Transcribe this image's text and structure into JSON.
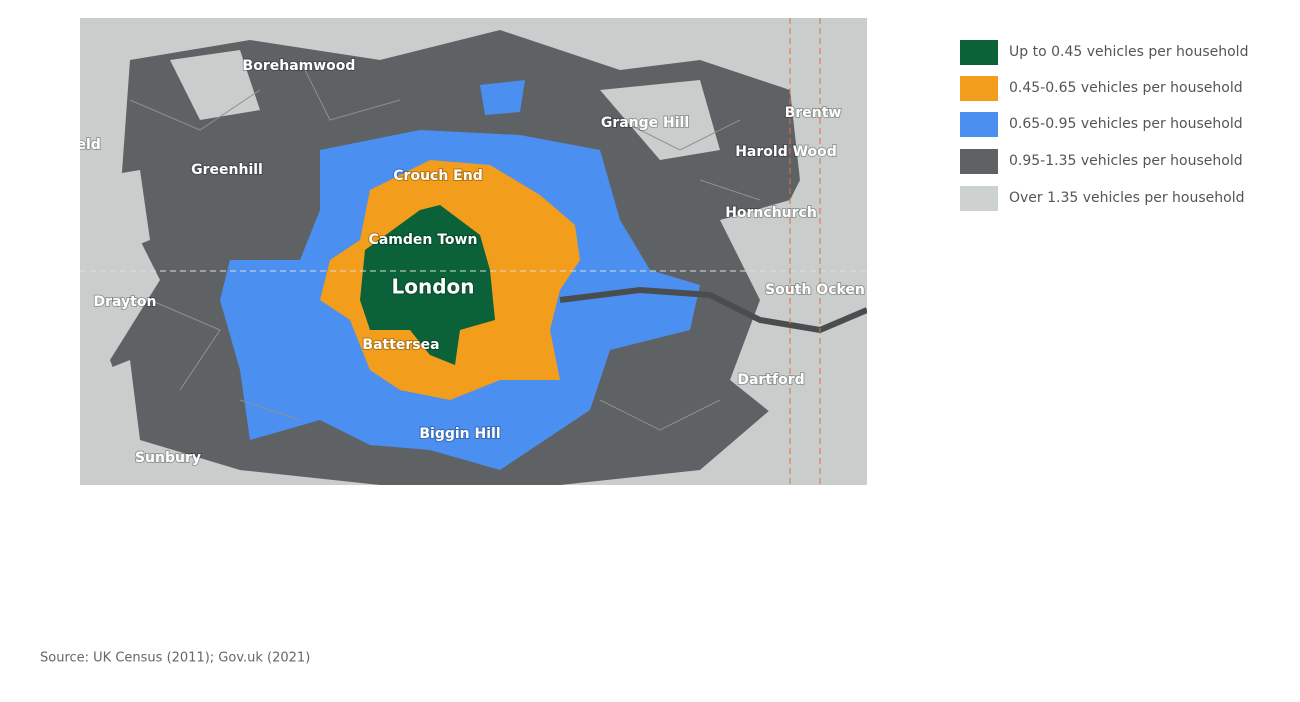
{
  "map": {
    "labels": [
      "Borehamwood",
      "rfield",
      "Greenhill",
      "Crouch End",
      "Camden Town",
      "London",
      "Drayton",
      "Battersea",
      "Biggin Hill",
      "Sunbury",
      "Grange Hill",
      "Harold Wood",
      "Brentw",
      "Hornchurch",
      "South Ocken",
      "Dartford"
    ]
  },
  "legend": [
    {
      "label": "Up to 0.45 vehicles per household",
      "color": "#0b6138"
    },
    {
      "label": "0.45-0.65 vehicles per household",
      "color": "#f29d1b"
    },
    {
      "label": "0.65-0.95 vehicles per household",
      "color": "#4b8ff0"
    },
    {
      "label": "0.95-1.35 vehicles per household",
      "color": "#5f6265"
    },
    {
      "label": "Over 1.35 vehicles per household",
      "color": "#cdd2d0"
    }
  ],
  "source": "Source: UK Census (2011); Gov.uk (2021)"
}
